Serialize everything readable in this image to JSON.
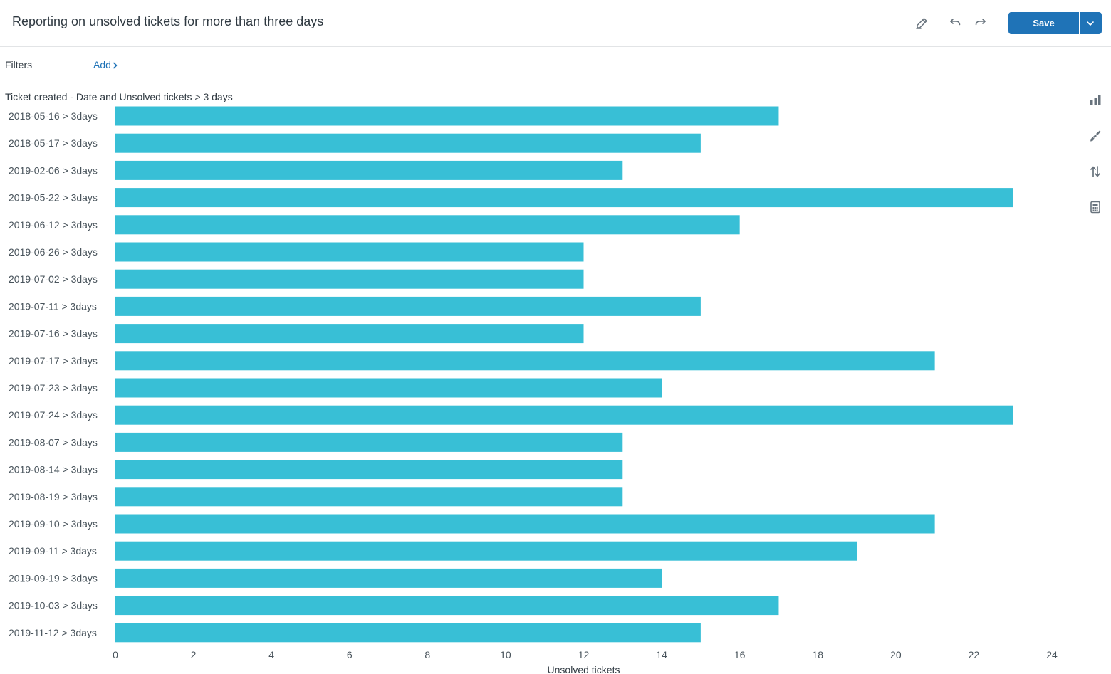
{
  "header": {
    "title": "Reporting on unsolved tickets for more than three days",
    "save_label": "Save"
  },
  "filters": {
    "label": "Filters",
    "add_label": "Add"
  },
  "icons": {
    "edit": "pencil-edit-icon",
    "undo": "undo-icon",
    "redo": "redo-icon",
    "save_dropdown": "chevron-down-icon",
    "add_chevron": "chevron-right-icon",
    "sidebar": [
      "bar-chart-icon",
      "paintbrush-icon",
      "sort-arrows-icon",
      "calculator-icon"
    ]
  },
  "colors": {
    "bar": "#38bfd6",
    "accent": "#1f73b7"
  },
  "chart_data": {
    "type": "bar",
    "orientation": "horizontal",
    "title": "Ticket created - Date and Unsolved tickets > 3 days",
    "xlabel": "Unsolved tickets",
    "ylabel": "",
    "xlim": [
      0,
      24
    ],
    "xticks": [
      0,
      2,
      4,
      6,
      8,
      10,
      12,
      14,
      16,
      18,
      20,
      22,
      24
    ],
    "grid": false,
    "categories": [
      "2018-05-16 > 3days",
      "2018-05-17 > 3days",
      "2019-02-06 > 3days",
      "2019-05-22 > 3days",
      "2019-06-12 > 3days",
      "2019-06-26 > 3days",
      "2019-07-02 > 3days",
      "2019-07-11 > 3days",
      "2019-07-16 > 3days",
      "2019-07-17 > 3days",
      "2019-07-23 > 3days",
      "2019-07-24 > 3days",
      "2019-08-07 > 3days",
      "2019-08-14 > 3days",
      "2019-08-19 > 3days",
      "2019-09-10 > 3days",
      "2019-09-11 > 3days",
      "2019-09-19 > 3days",
      "2019-10-03 > 3days",
      "2019-11-12 > 3days"
    ],
    "values": [
      17,
      15,
      13,
      23,
      16,
      12,
      12,
      15,
      12,
      21,
      14,
      23,
      13,
      13,
      13,
      21,
      19,
      14,
      17,
      15
    ]
  }
}
